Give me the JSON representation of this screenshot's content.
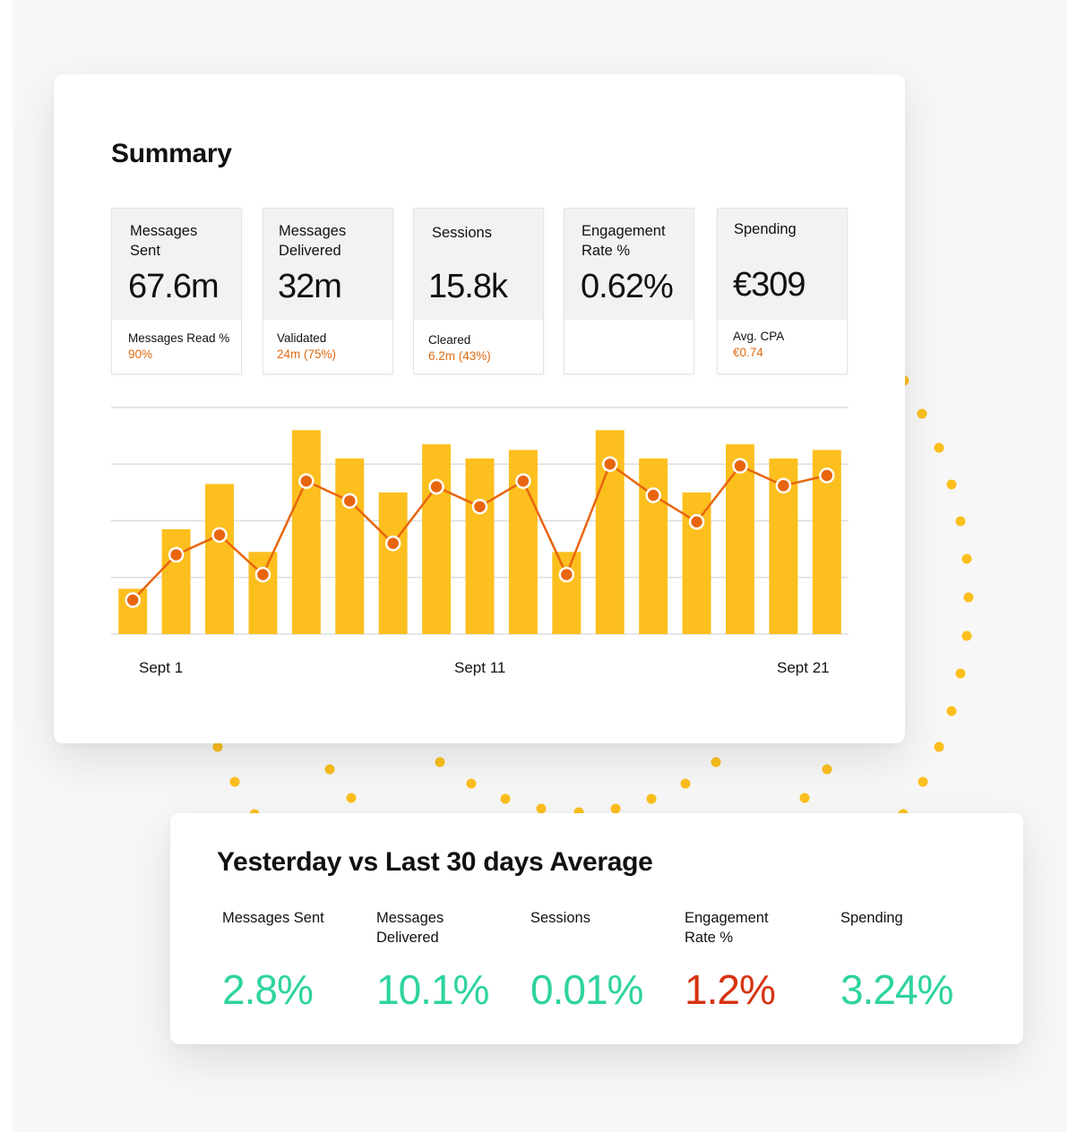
{
  "summary": {
    "title": "Summary",
    "cards": [
      {
        "label": "Messages Sent",
        "value": "67.6m",
        "sub_label": "Messages Read %",
        "sub_value": "90%"
      },
      {
        "label": "Messages Delivered",
        "value": "32m",
        "sub_label": "Validated",
        "sub_value": "24m (75%)"
      },
      {
        "label": "Sessions",
        "value": "15.8k",
        "sub_label": "Cleared",
        "sub_value": "6.2m (43%)"
      },
      {
        "label": "Engagement Rate %",
        "value": "0.62%",
        "sub_label": "",
        "sub_value": ""
      },
      {
        "label": "Spending",
        "value": "€309",
        "sub_label": "Avg. CPA",
        "sub_value": "€0.74"
      }
    ]
  },
  "chart_data": {
    "type": "bar",
    "x_tick_labels": [
      "Sept 1",
      "Sept 11",
      "Sept 21"
    ],
    "bar_values": [
      0.8,
      1.85,
      2.65,
      1.45,
      3.6,
      3.1,
      2.5,
      3.35,
      3.1,
      3.25,
      1.45,
      3.6,
      3.1,
      2.5,
      3.35,
      3.1,
      3.25
    ],
    "line_values": [
      0.6,
      1.4,
      1.75,
      1.05,
      2.7,
      2.35,
      1.6,
      2.6,
      2.25,
      2.7,
      1.05,
      3.0,
      2.45,
      1.98,
      2.97,
      2.62,
      2.8
    ],
    "ylim": [
      0,
      4
    ],
    "grid": true,
    "colors": {
      "bars": "#fcbf1e",
      "line": "#e8650e",
      "marker_stroke": "#ffffff",
      "grid": "#dddddd"
    }
  },
  "comparison": {
    "title": "Yesterday vs Last 30 days Average",
    "items": [
      {
        "label": "Messages Sent",
        "value": "2.8%",
        "color": "#2ed3a0"
      },
      {
        "label": "Messages Delivered",
        "value": "10.1%",
        "color": "#2ed3a0"
      },
      {
        "label": "Sessions",
        "value": "0.01%",
        "color": "#2ed3a0"
      },
      {
        "label": "Engagement Rate %",
        "value": "1.2%",
        "color": "#d63312"
      },
      {
        "label": "Spending",
        "value": "3.24%",
        "color": "#2ed3a0"
      }
    ]
  },
  "decor": {
    "dot_color": "#fcbf1e"
  }
}
